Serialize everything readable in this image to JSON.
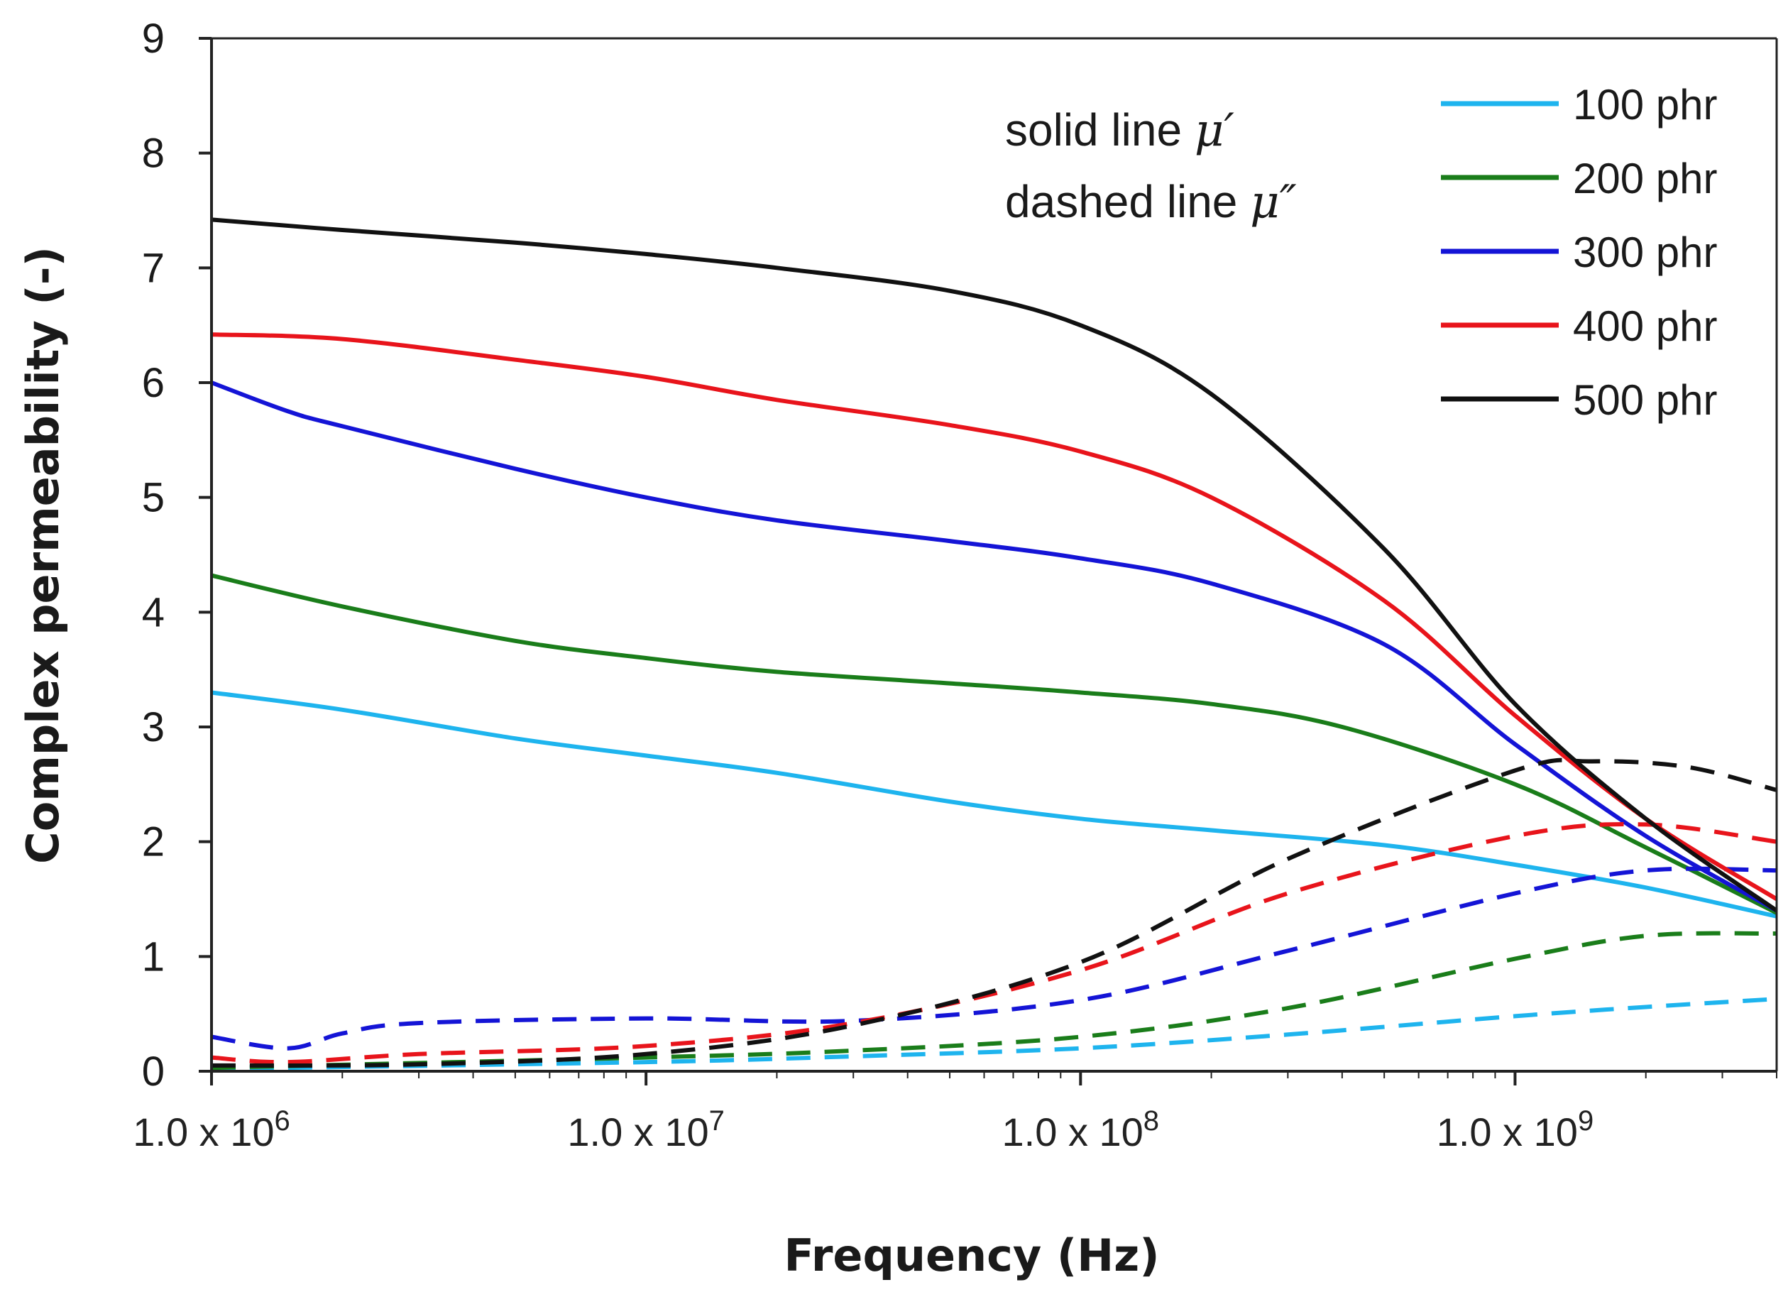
{
  "chart_data": {
    "type": "line",
    "xscale": "log",
    "xlabel": "Frequency (Hz)",
    "ylabel": "Complex permeability (-)",
    "xlim": [
      1000000,
      4000000000
    ],
    "ylim": [
      0,
      9
    ],
    "yticks": [
      0,
      1,
      2,
      3,
      4,
      5,
      6,
      7,
      8,
      9
    ],
    "xticks": [
      {
        "value": 1000000,
        "mantissa": "1.0 x 10",
        "exp": "6"
      },
      {
        "value": 10000000,
        "mantissa": "1.0 x 10",
        "exp": "7"
      },
      {
        "value": 100000000,
        "mantissa": "1.0 x 10",
        "exp": "8"
      },
      {
        "value": 1000000000,
        "mantissa": "1.0 x 10",
        "exp": "9"
      }
    ],
    "annotation": {
      "solid_prefix": "solid line ",
      "solid_symbol": "μ′",
      "dashed_prefix": "dashed line ",
      "dashed_symbol": "μ″"
    },
    "legend": [
      "100 phr",
      "200 phr",
      "300 phr",
      "400 phr",
      "500 phr"
    ],
    "series": [
      {
        "name": "100 phr",
        "color": "#1eb4ee",
        "mu_real": [
          [
            1000000,
            3.3
          ],
          [
            2000000,
            3.15
          ],
          [
            5000000,
            2.9
          ],
          [
            10000000,
            2.75
          ],
          [
            20000000,
            2.6
          ],
          [
            50000000,
            2.35
          ],
          [
            100000000,
            2.2
          ],
          [
            200000000,
            2.1
          ],
          [
            500000000,
            1.97
          ],
          [
            1000000000,
            1.8
          ],
          [
            2000000000,
            1.6
          ],
          [
            4000000000,
            1.35
          ]
        ],
        "mu_imag": [
          [
            1000000,
            0.02
          ],
          [
            10000000,
            0.08
          ],
          [
            30000000,
            0.13
          ],
          [
            100000000,
            0.2
          ],
          [
            300000000,
            0.32
          ],
          [
            1000000000,
            0.48
          ],
          [
            2000000000,
            0.56
          ],
          [
            4000000000,
            0.63
          ]
        ]
      },
      {
        "name": "200 phr",
        "color": "#1a7d1a",
        "mu_real": [
          [
            1000000,
            4.32
          ],
          [
            2000000,
            4.05
          ],
          [
            5000000,
            3.75
          ],
          [
            10000000,
            3.6
          ],
          [
            20000000,
            3.48
          ],
          [
            50000000,
            3.38
          ],
          [
            100000000,
            3.3
          ],
          [
            200000000,
            3.2
          ],
          [
            400000000,
            3.0
          ],
          [
            1000000000,
            2.5
          ],
          [
            2000000000,
            1.95
          ],
          [
            4000000000,
            1.38
          ]
        ],
        "mu_imag": [
          [
            1000000,
            0.03
          ],
          [
            10000000,
            0.12
          ],
          [
            30000000,
            0.18
          ],
          [
            100000000,
            0.3
          ],
          [
            300000000,
            0.55
          ],
          [
            1000000000,
            0.98
          ],
          [
            2000000000,
            1.18
          ],
          [
            4000000000,
            1.2
          ]
        ]
      },
      {
        "name": "300 phr",
        "color": "#1414d6",
        "mu_real": [
          [
            1000000,
            6.0
          ],
          [
            1500000,
            5.75
          ],
          [
            2000000,
            5.62
          ],
          [
            5000000,
            5.25
          ],
          [
            10000000,
            5.0
          ],
          [
            20000000,
            4.8
          ],
          [
            50000000,
            4.62
          ],
          [
            100000000,
            4.47
          ],
          [
            200000000,
            4.25
          ],
          [
            500000000,
            3.72
          ],
          [
            1000000000,
            2.85
          ],
          [
            2000000000,
            2.05
          ],
          [
            4000000000,
            1.4
          ]
        ],
        "mu_imag": [
          [
            1000000,
            0.3
          ],
          [
            1500000,
            0.2
          ],
          [
            2000000,
            0.33
          ],
          [
            3000000,
            0.42
          ],
          [
            10000000,
            0.46
          ],
          [
            30000000,
            0.44
          ],
          [
            100000000,
            0.62
          ],
          [
            300000000,
            1.05
          ],
          [
            1000000000,
            1.55
          ],
          [
            2000000000,
            1.75
          ],
          [
            4000000000,
            1.75
          ]
        ]
      },
      {
        "name": "400 phr",
        "color": "#e8141b",
        "mu_real": [
          [
            1000000,
            6.42
          ],
          [
            2000000,
            6.38
          ],
          [
            5000000,
            6.2
          ],
          [
            10000000,
            6.05
          ],
          [
            20000000,
            5.85
          ],
          [
            50000000,
            5.63
          ],
          [
            100000000,
            5.4
          ],
          [
            200000000,
            5.0
          ],
          [
            500000000,
            4.1
          ],
          [
            1000000000,
            3.1
          ],
          [
            2000000000,
            2.2
          ],
          [
            4000000000,
            1.5
          ]
        ],
        "mu_imag": [
          [
            1000000,
            0.12
          ],
          [
            1500000,
            0.08
          ],
          [
            3000000,
            0.15
          ],
          [
            10000000,
            0.22
          ],
          [
            30000000,
            0.42
          ],
          [
            100000000,
            0.88
          ],
          [
            300000000,
            1.55
          ],
          [
            1000000000,
            2.05
          ],
          [
            2000000000,
            2.15
          ],
          [
            4000000000,
            2.0
          ]
        ]
      },
      {
        "name": "500 phr",
        "color": "#111111",
        "mu_real": [
          [
            1000000,
            7.42
          ],
          [
            2000000,
            7.33
          ],
          [
            5000000,
            7.22
          ],
          [
            10000000,
            7.12
          ],
          [
            20000000,
            7.0
          ],
          [
            50000000,
            6.8
          ],
          [
            100000000,
            6.5
          ],
          [
            200000000,
            5.9
          ],
          [
            500000000,
            4.55
          ],
          [
            1000000000,
            3.2
          ],
          [
            2000000000,
            2.2
          ],
          [
            4000000000,
            1.4
          ]
        ],
        "mu_imag": [
          [
            1000000,
            0.05
          ],
          [
            3000000,
            0.06
          ],
          [
            10000000,
            0.15
          ],
          [
            30000000,
            0.4
          ],
          [
            100000000,
            0.95
          ],
          [
            300000000,
            1.85
          ],
          [
            1000000000,
            2.62
          ],
          [
            1500000000,
            2.7
          ],
          [
            2500000000,
            2.65
          ],
          [
            4000000000,
            2.45
          ]
        ]
      }
    ]
  }
}
